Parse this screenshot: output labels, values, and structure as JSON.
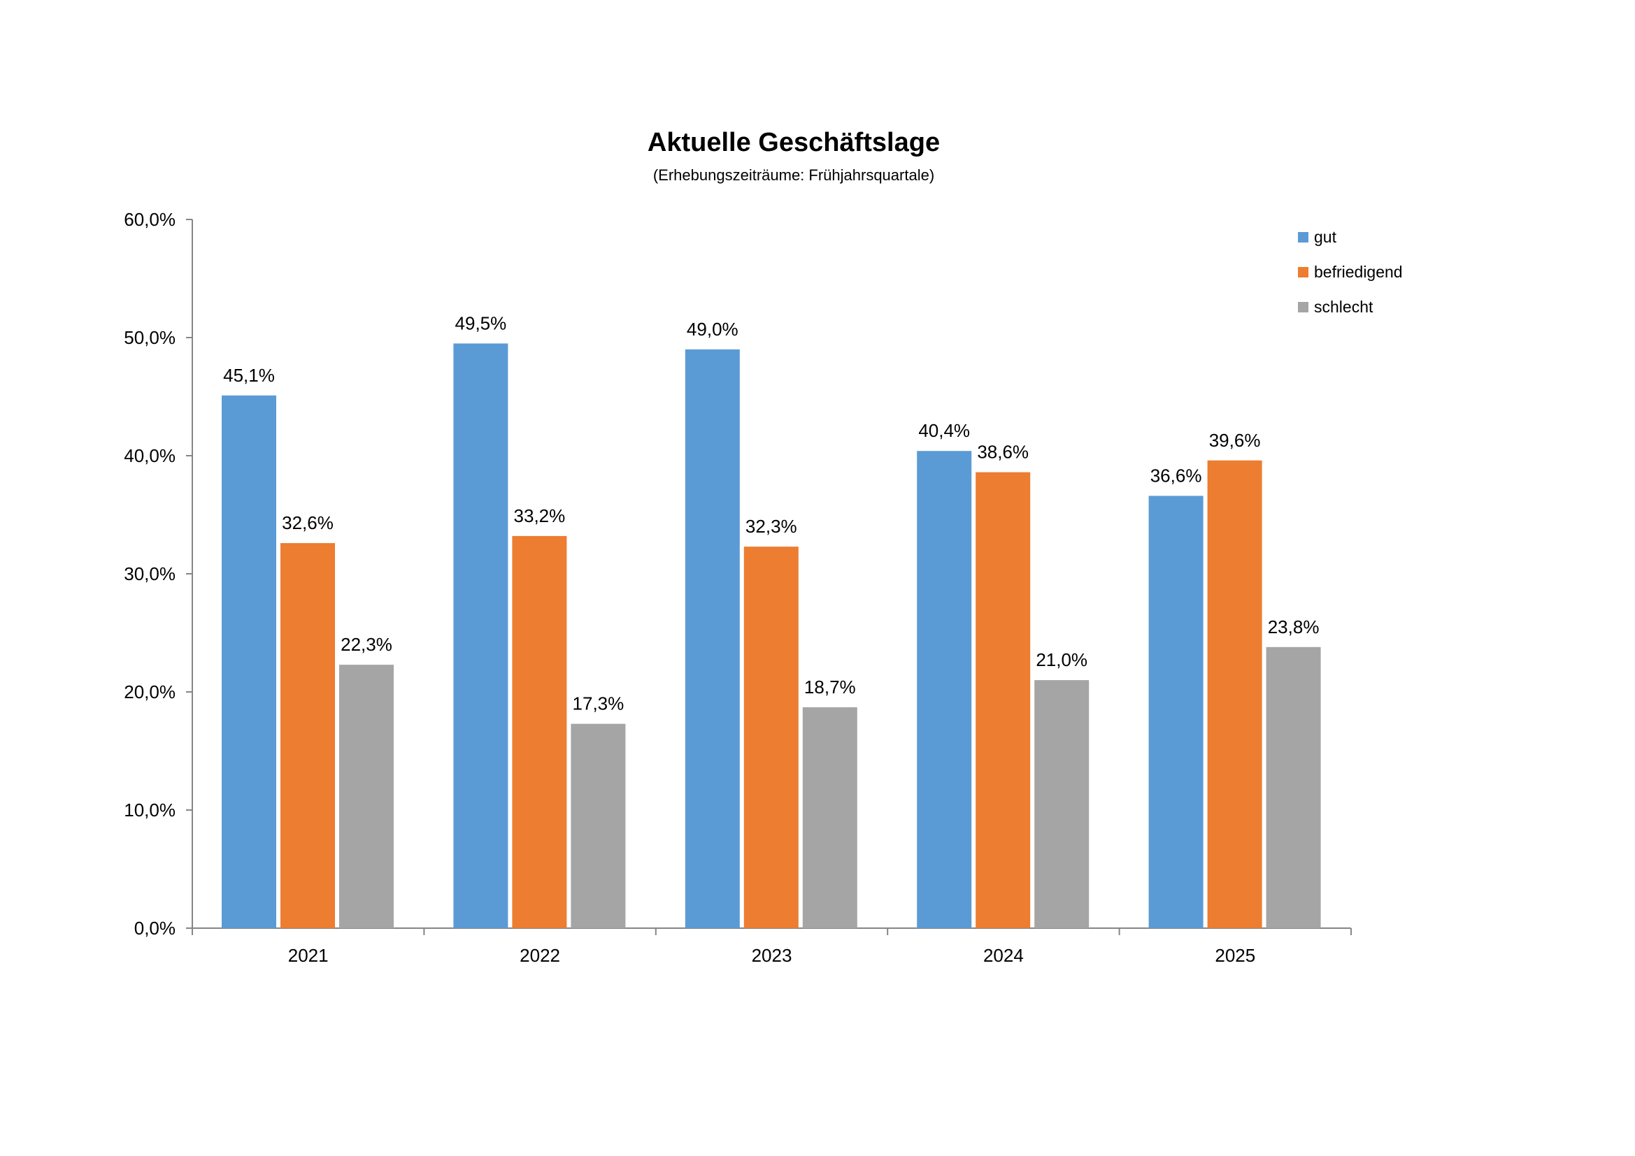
{
  "chart_data": {
    "type": "bar",
    "title": "Aktuelle Geschäftslage",
    "subtitle": "(Erhebungszeiträume: Frühjahrsquartale)",
    "xlabel": "",
    "ylabel": "",
    "categories": [
      "2021",
      "2022",
      "2023",
      "2024",
      "2025"
    ],
    "series": [
      {
        "name": "gut",
        "color": "#5B9BD5",
        "values": [
          45.1,
          49.5,
          49.0,
          40.4,
          36.6
        ],
        "labels": [
          "45,1%",
          "49,5%",
          "49,0%",
          "40,4%",
          "36,6%"
        ]
      },
      {
        "name": "befriedigend",
        "color": "#ED7D31",
        "values": [
          32.6,
          33.2,
          32.3,
          38.6,
          39.6
        ],
        "labels": [
          "32,6%",
          "33,2%",
          "32,3%",
          "38,6%",
          "39,6%"
        ]
      },
      {
        "name": "schlecht",
        "color": "#A5A5A5",
        "values": [
          22.3,
          17.3,
          18.7,
          21.0,
          23.8
        ],
        "labels": [
          "22,3%",
          "17,3%",
          "18,7%",
          "21,0%",
          "23,8%"
        ]
      }
    ],
    "ylim": [
      0,
      60
    ],
    "yticks": [
      0,
      10,
      20,
      30,
      40,
      50,
      60
    ],
    "ytick_labels": [
      "0,0%",
      "10,0%",
      "20,0%",
      "30,0%",
      "40,0%",
      "50,0%",
      "60,0%"
    ],
    "grid": false,
    "legend_position": "top-right"
  }
}
